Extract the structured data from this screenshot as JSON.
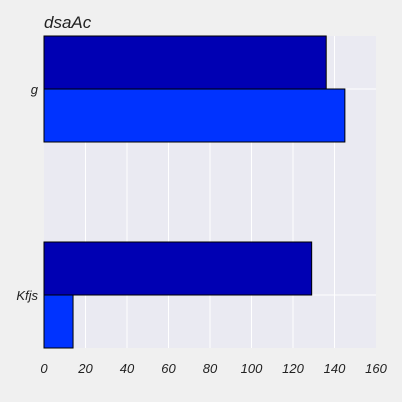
{
  "chart_data": {
    "type": "bar",
    "orientation": "horizontal",
    "title": "dsaAc",
    "xlabel": "",
    "ylabel": "",
    "categories": [
      "g",
      "Kfjs"
    ],
    "series": [
      {
        "color": "#0000b3",
        "values": [
          136,
          129
        ]
      },
      {
        "color": "#0033ff",
        "values": [
          145,
          14
        ]
      }
    ],
    "xlim": [
      0,
      160
    ],
    "xticks": [
      "0",
      "20",
      "40",
      "60",
      "80",
      "100",
      "120",
      "140",
      "160"
    ],
    "grid": true,
    "legend": "none",
    "plot_background": "#eaeaf2",
    "grid_color": "#ffffff",
    "bar_edge_color": "#000000"
  }
}
